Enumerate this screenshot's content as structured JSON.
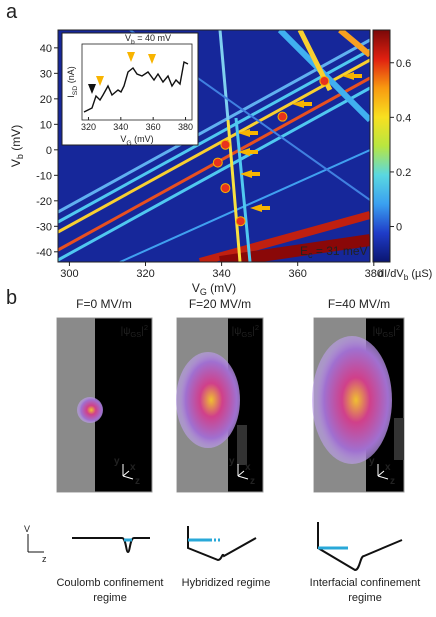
{
  "panel_labels": {
    "a": "a",
    "b": "b"
  },
  "chart_data": {
    "type": "heatmap",
    "xlabel": {
      "main": "V",
      "sub": "G",
      "unit": " (mV)"
    },
    "ylabel": {
      "main": "V",
      "sub": "b",
      "unit": " (mV)"
    },
    "xlim": [
      297,
      379
    ],
    "xticks": [
      300,
      320,
      340,
      360,
      380
    ],
    "ylim": [
      -44,
      47
    ],
    "yticks": [
      -40,
      -30,
      -20,
      -10,
      0,
      10,
      20,
      30,
      40
    ],
    "colorbar": {
      "label": {
        "main": "dI/dV",
        "sub": "b",
        "unit": " (µS)"
      },
      "lim": [
        -0.13,
        0.72
      ],
      "ticks": [
        0,
        0.2,
        0.4,
        0.6
      ],
      "colors": [
        "#0a1570",
        "#1f3cc8",
        "#3aa0f0",
        "#5ad8e0",
        "#b8e640",
        "#f8e020",
        "#f89a10",
        "#e02010",
        "#7a0808"
      ]
    },
    "markers": {
      "x": [
        341,
        339,
        341,
        345,
        356,
        367
      ],
      "y": [
        2,
        -5,
        -15,
        -28,
        13,
        27
      ],
      "color": "#e8321e"
    },
    "annotation": {
      "main": "E",
      "sub": "c",
      "unit": " = 31 meV"
    }
  },
  "inset": {
    "title": {
      "main": "V",
      "sub": "b",
      "unit": " = 40 mV"
    },
    "xlabel": {
      "main": "V",
      "sub": "G",
      "unit": " (mV)"
    },
    "ylabel": {
      "main": "I",
      "sub": "SD",
      "unit": " (nA)"
    },
    "xlim": [
      316,
      384
    ],
    "xticks": [
      320,
      340,
      360,
      380
    ]
  },
  "panel_b": {
    "panels": [
      {
        "title": "F=0 MV/m",
        "regime": [
          "Coulomb confinement",
          "regime"
        ]
      },
      {
        "title": "F=20 MV/m",
        "regime": [
          "Hybridized regime"
        ]
      },
      {
        "title": "F=40 MV/m",
        "regime": [
          "Interfacial confinement",
          "regime"
        ]
      }
    ],
    "psi": {
      "main": "|ψ",
      "sub": "GS",
      "end": "|",
      "sup": "2"
    },
    "axes": {
      "y": "y",
      "x": "x",
      "z": "z"
    },
    "potential_axes": {
      "v": "V",
      "z": "z"
    }
  }
}
